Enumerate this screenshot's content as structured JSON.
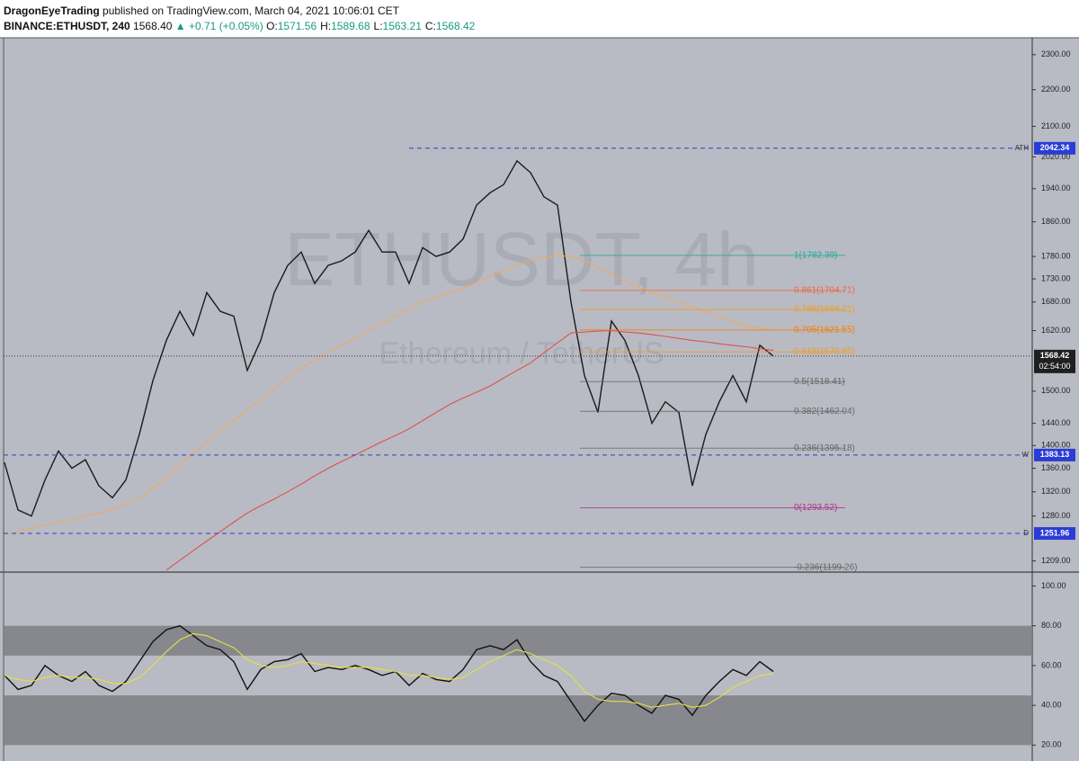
{
  "header": {
    "author": "DragonEyeTrading",
    "published": "published on TradingView.com, March 04, 2021 10:06:01 CET",
    "symbol": "BINANCE:ETHUSDT, 240",
    "last": "1568.40",
    "change": "▲ +0.71 (+0.05%)",
    "ohlc": [
      {
        "key": "O:",
        "value": "1571.56"
      },
      {
        "key": "H:",
        "value": "1589.68"
      },
      {
        "key": "L:",
        "value": "1563.21"
      },
      {
        "key": "C:",
        "value": "1568.42"
      }
    ]
  },
  "chart_data": [
    {
      "type": "line",
      "log": true,
      "watermark": [
        "ETHUSDT, 4h",
        "Ethereum / TetherUS"
      ],
      "ylim": [
        1192,
        2350
      ],
      "yticks": [
        {
          "value": 2300,
          "label": "2300.00"
        },
        {
          "value": 2200,
          "label": "2200.00"
        },
        {
          "value": 2100,
          "label": "2100.00"
        },
        {
          "value": 2020,
          "label": "2020.00"
        },
        {
          "value": 1940,
          "label": "1940.00"
        },
        {
          "value": 1860,
          "label": "1860.00"
        },
        {
          "value": 1780,
          "label": "1780.00"
        },
        {
          "value": 1730,
          "label": "1730.00"
        },
        {
          "value": 1680,
          "label": "1680.00"
        },
        {
          "value": 1620,
          "label": "1620.00"
        },
        {
          "value": 1500,
          "label": "1500.00"
        },
        {
          "value": 1440,
          "label": "1440.00"
        },
        {
          "value": 1400,
          "label": "1400.00"
        },
        {
          "value": 1360,
          "label": "1360.00"
        },
        {
          "value": 1320,
          "label": "1320.00"
        },
        {
          "value": 1280,
          "label": "1280.00"
        },
        {
          "value": 1209,
          "label": "1209.00"
        }
      ],
      "series": [
        {
          "color": "#1a1a1a",
          "values": [
            1370,
            1290,
            1280,
            1340,
            1390,
            1360,
            1375,
            1330,
            1310,
            1340,
            1420,
            1520,
            1600,
            1660,
            1610,
            1700,
            1660,
            1650,
            1540,
            1600,
            1700,
            1760,
            1790,
            1720,
            1760,
            1770,
            1790,
            1840,
            1790,
            1790,
            1720,
            1800,
            1780,
            1790,
            1820,
            1900,
            1930,
            1950,
            2010,
            1980,
            1920,
            1900,
            1680,
            1530,
            1460,
            1640,
            1600,
            1530,
            1440,
            1480,
            1460,
            1330,
            1420,
            1480,
            1530,
            1480,
            1590,
            1568.42
          ]
        },
        {
          "color": "#f0a860",
          "values": [
            1250,
            1255,
            1260,
            1265,
            1270,
            1275,
            1280,
            1285,
            1290,
            1300,
            1310,
            1325,
            1345,
            1365,
            1385,
            1405,
            1425,
            1445,
            1465,
            1485,
            1505,
            1525,
            1545,
            1560,
            1575,
            1590,
            1605,
            1620,
            1635,
            1650,
            1665,
            1680,
            1690,
            1700,
            1710,
            1722,
            1735,
            1748,
            1760,
            1770,
            1778,
            1782,
            1780,
            1770,
            1755,
            1740,
            1725,
            1712,
            1700,
            1690,
            1680,
            1670,
            1660,
            1650,
            1640,
            1630,
            1625,
            1620
          ]
        },
        {
          "color": "#e05050",
          "values": [
            null,
            null,
            null,
            null,
            null,
            null,
            null,
            null,
            null,
            null,
            null,
            null,
            1195,
            1210,
            1225,
            1240,
            1255,
            1270,
            1285,
            1297,
            1308,
            1320,
            1333,
            1347,
            1360,
            1372,
            1383,
            1395,
            1407,
            1418,
            1430,
            1445,
            1460,
            1475,
            1487,
            1498,
            1510,
            1525,
            1540,
            1555,
            1575,
            1595,
            1615,
            1617,
            1619,
            1620,
            1617,
            1615,
            1612,
            1608,
            1604,
            1600,
            1597,
            1593,
            1590,
            1587,
            1583,
            1580
          ]
        }
      ],
      "levels": [
        {
          "label": "ATH",
          "value": 2042.34
        },
        {
          "label": "W",
          "value": 1383.13
        },
        {
          "label": "D",
          "value": 1251.96
        }
      ],
      "last_price": {
        "value": 1568.42,
        "countdown": "02:54:00"
      },
      "fib": [
        {
          "label": "1(1782.39)",
          "value": 1782.39,
          "color": "#26a69a"
        },
        {
          "label": "0.861(1704.71)",
          "value": 1704.71,
          "color": "#f0663c"
        },
        {
          "label": "0.786(1664.21)",
          "value": 1664.21,
          "color": "#f59a23"
        },
        {
          "label": "0.705(1621.55)",
          "value": 1621.55,
          "color": "#f57c00"
        },
        {
          "label": "0.618(1576.95)",
          "value": 1576.95,
          "color": "#f59a23"
        },
        {
          "label": "0.5(1518.41)",
          "value": 1518.41,
          "color": "#666666"
        },
        {
          "label": "0.382(1462.04)",
          "value": 1462.04,
          "color": "#666666"
        },
        {
          "label": "0.236(1395.18)",
          "value": 1395.18,
          "color": "#666666"
        },
        {
          "label": "0(1293.52)",
          "value": 1293.52,
          "color": "#b03090"
        },
        {
          "label": "-0.236(1199.26)",
          "value": 1199.26,
          "color": "#666666"
        }
      ]
    },
    {
      "type": "line",
      "log": false,
      "ylim": [
        12,
        107
      ],
      "yticks": [
        {
          "value": 100,
          "label": "100.00"
        },
        {
          "value": 80,
          "label": "80.00"
        },
        {
          "value": 60,
          "label": "60.00"
        },
        {
          "value": 40,
          "label": "40.00"
        },
        {
          "value": 20,
          "label": "20.00"
        }
      ],
      "bands": [
        {
          "from": 65,
          "to": 80,
          "color": "#7d7f85"
        },
        {
          "from": 20,
          "to": 45,
          "color": "#7d7f85"
        }
      ],
      "series": [
        {
          "color": "#111111",
          "values": [
            55,
            48,
            50,
            60,
            55,
            52,
            57,
            50,
            47,
            52,
            62,
            72,
            78,
            80,
            75,
            70,
            68,
            62,
            48,
            58,
            62,
            63,
            66,
            57,
            59,
            58,
            60,
            58,
            55,
            57,
            50,
            56,
            53,
            52,
            58,
            68,
            70,
            68,
            73,
            62,
            55,
            52,
            42,
            32,
            40,
            46,
            45,
            40,
            36,
            45,
            43,
            35,
            45,
            52,
            58,
            55,
            62,
            57
          ]
        },
        {
          "color": "#e8e040",
          "values": [
            55,
            53,
            52,
            54,
            55,
            54,
            54,
            53,
            51,
            51,
            54,
            60,
            67,
            73,
            76,
            75,
            72,
            69,
            63,
            60,
            59,
            60,
            62,
            61,
            60,
            59,
            59,
            59,
            58,
            57,
            55,
            55,
            54,
            53,
            54,
            58,
            62,
            65,
            68,
            66,
            63,
            60,
            55,
            47,
            43,
            42,
            42,
            41,
            39,
            40,
            41,
            39,
            40,
            44,
            49,
            52,
            55,
            56
          ]
        }
      ]
    }
  ]
}
